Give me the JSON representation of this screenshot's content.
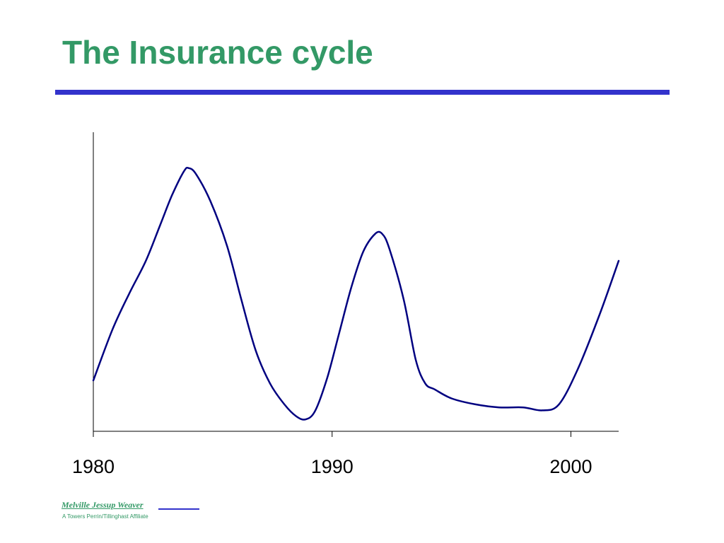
{
  "slide": {
    "title": "The Insurance cycle"
  },
  "footer": {
    "logo_text": "Melville Jessup Weaver",
    "subtitle": "A Towers Perrin/Tillinghast Affiliate"
  },
  "colors": {
    "title": "#339966",
    "rule": "#3333cc",
    "line": "#000080",
    "axis": "#000000",
    "footer": "#339966"
  },
  "chart_data": {
    "type": "line",
    "title": "",
    "xlabel": "",
    "ylabel": "",
    "x_ticks": [
      "1980",
      "1990",
      "2000"
    ],
    "xlim": [
      1980,
      2002
    ],
    "ylim": [
      0,
      100
    ],
    "y_axis_labels": false,
    "grid": false,
    "legend": "none",
    "series": [
      {
        "x": [
          1980,
          1980.8,
          1981.5,
          1982.2,
          1982.8,
          1983.3,
          1983.8,
          1984,
          1984.3,
          1984.9,
          1985.6,
          1986.2,
          1986.8,
          1987.4,
          1988,
          1988.5,
          1988.9,
          1989.3,
          1989.8,
          1990.3,
          1990.8,
          1991.3,
          1991.8,
          1992.1,
          1992.4,
          1993,
          1993.5,
          1993.9,
          1994.3,
          1995,
          1996,
          1997,
          1998,
          1998.8,
          1999.5,
          2000.3,
          2001.2,
          2002
        ],
        "y": [
          17,
          34,
          46,
          57,
          69,
          79,
          87,
          88,
          86,
          77,
          62,
          44,
          27,
          16,
          9,
          5,
          4,
          7,
          18,
          33,
          48,
          60,
          66,
          66,
          61,
          44,
          24,
          16,
          14,
          11,
          9,
          8,
          8,
          7,
          9,
          21,
          39,
          57
        ]
      }
    ]
  }
}
